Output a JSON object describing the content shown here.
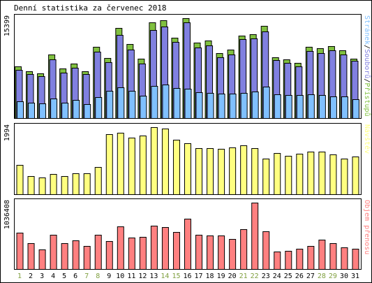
{
  "chart_data": {
    "type": "bar",
    "title": "Denní statistika za červenec 2018",
    "categories": [
      "1",
      "2",
      "3",
      "4",
      "5",
      "6",
      "7",
      "8",
      "9",
      "10",
      "11",
      "12",
      "13",
      "14",
      "15",
      "16",
      "17",
      "18",
      "19",
      "20",
      "21",
      "22",
      "23",
      "24",
      "25",
      "26",
      "27",
      "28",
      "29",
      "30",
      "31"
    ],
    "weekend_days": [
      "1",
      "7",
      "8",
      "14",
      "15",
      "21",
      "22",
      "28",
      "29"
    ],
    "colors": {
      "frame": "#000000",
      "hits": "#80c040",
      "files": "#8080e0",
      "pages": "#80c0ff",
      "visits": "#ffff80",
      "kbytes": "#ff8080",
      "weekday_label": "#000000",
      "weekend_label": "#80a040",
      "grid_background": "#ffffff"
    },
    "panels": [
      {
        "id": "top",
        "ymax_label": "15399",
        "ymax": 15399,
        "legend": [
          {
            "text": "Stránek",
            "color": "#80c0ff"
          },
          {
            "text": "/",
            "color": "#000000"
          },
          {
            "text": "Souborů",
            "color": "#8080e0"
          },
          {
            "text": "/",
            "color": "#000000"
          },
          {
            "text": "Přístupů",
            "color": "#80c040"
          }
        ],
        "series": [
          {
            "key": "hits",
            "values": [
              8000,
              7200,
              6900,
              9800,
              7600,
              8400,
              7200,
              11000,
              9300,
              13900,
              11400,
              9100,
              14700,
              15100,
              12400,
              15400,
              11600,
              11900,
              10000,
              10500,
              12700,
              12900,
              14200,
              9400,
              9000,
              8500,
              11000,
              10800,
              11100,
              10400,
              9200
            ]
          },
          {
            "key": "files",
            "values": [
              7400,
              6800,
              6500,
              9000,
              7000,
              7700,
              6800,
              10200,
              8600,
              12800,
              10600,
              8400,
              13600,
              14100,
              11700,
              14700,
              10900,
              11200,
              9400,
              9800,
              12200,
              12300,
              13400,
              8900,
              8500,
              8000,
              10300,
              10000,
              10400,
              9800,
              8800
            ]
          },
          {
            "key": "pages",
            "values": [
              2600,
              2400,
              2300,
              3000,
              2400,
              2800,
              2100,
              3200,
              4200,
              4700,
              4200,
              3400,
              4900,
              5200,
              4600,
              4500,
              4000,
              3900,
              3800,
              3800,
              3900,
              4100,
              4800,
              3700,
              3500,
              3600,
              3700,
              3500,
              3300,
              3300,
              2900
            ]
          }
        ]
      },
      {
        "id": "middle",
        "ymax_label": "1994",
        "ymax": 1994,
        "legend": [
          {
            "text": "Návštěv",
            "color": "#ffff80"
          }
        ],
        "series": [
          {
            "key": "visits",
            "values": [
              880,
              530,
              500,
              600,
              540,
              620,
              620,
              820,
              1780,
              1820,
              1690,
              1740,
              1990,
              1950,
              1620,
              1520,
              1380,
              1380,
              1350,
              1400,
              1450,
              1370,
              1060,
              1220,
              1140,
              1200,
              1260,
              1260,
              1180,
              1060,
              1120
            ]
          }
        ]
      },
      {
        "id": "bottom",
        "ymax_label": "1036408",
        "ymax": 1036408,
        "legend": [
          {
            "text": "Objem přenosu",
            "color": "#ff8080"
          }
        ],
        "series": [
          {
            "key": "kbytes",
            "values": [
              570000,
              400000,
              310000,
              540000,
              400000,
              450000,
              360000,
              540000,
              440000,
              670000,
              490000,
              500000,
              680000,
              660000,
              580000,
              790000,
              530000,
              520000,
              520000,
              470000,
              620000,
              1036408,
              590000,
              270000,
              280000,
              320000,
              360000,
              460000,
              400000,
              340000,
              320000
            ]
          }
        ]
      }
    ]
  }
}
